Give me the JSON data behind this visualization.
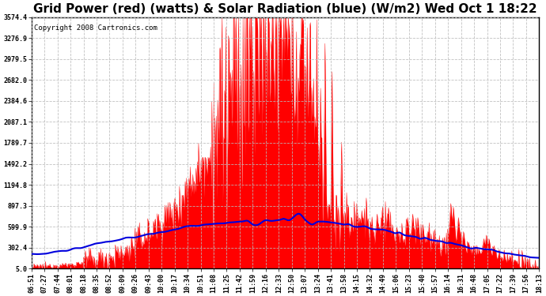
{
  "title": "Grid Power (red) (watts) & Solar Radiation (blue) (W/m2) Wed Oct 1 18:22",
  "copyright": "Copyright 2008 Cartronics.com",
  "yticks": [
    5.0,
    302.4,
    599.9,
    897.3,
    1194.8,
    1492.2,
    1789.7,
    2087.1,
    2384.6,
    2682.0,
    2979.5,
    3276.9,
    3574.4
  ],
  "ymin": 5.0,
  "ymax": 3574.4,
  "bg_color": "#ffffff",
  "grid_color": "#bbbbbb",
  "red_color": "#ff0000",
  "blue_color": "#0000dd",
  "title_fontsize": 11,
  "tick_fontsize": 6,
  "copyright_fontsize": 6.5,
  "xtick_labels": [
    "06:51",
    "07:27",
    "07:44",
    "08:01",
    "08:18",
    "08:35",
    "08:52",
    "09:09",
    "09:26",
    "09:43",
    "10:00",
    "10:17",
    "10:34",
    "10:51",
    "11:08",
    "11:25",
    "11:42",
    "11:59",
    "12:16",
    "12:33",
    "12:50",
    "13:07",
    "13:24",
    "13:41",
    "13:58",
    "14:15",
    "14:32",
    "14:49",
    "15:06",
    "15:23",
    "15:40",
    "15:57",
    "16:14",
    "16:31",
    "16:48",
    "17:05",
    "17:22",
    "17:39",
    "17:56",
    "18:13"
  ],
  "n_fine": 800,
  "n_labels": 40
}
